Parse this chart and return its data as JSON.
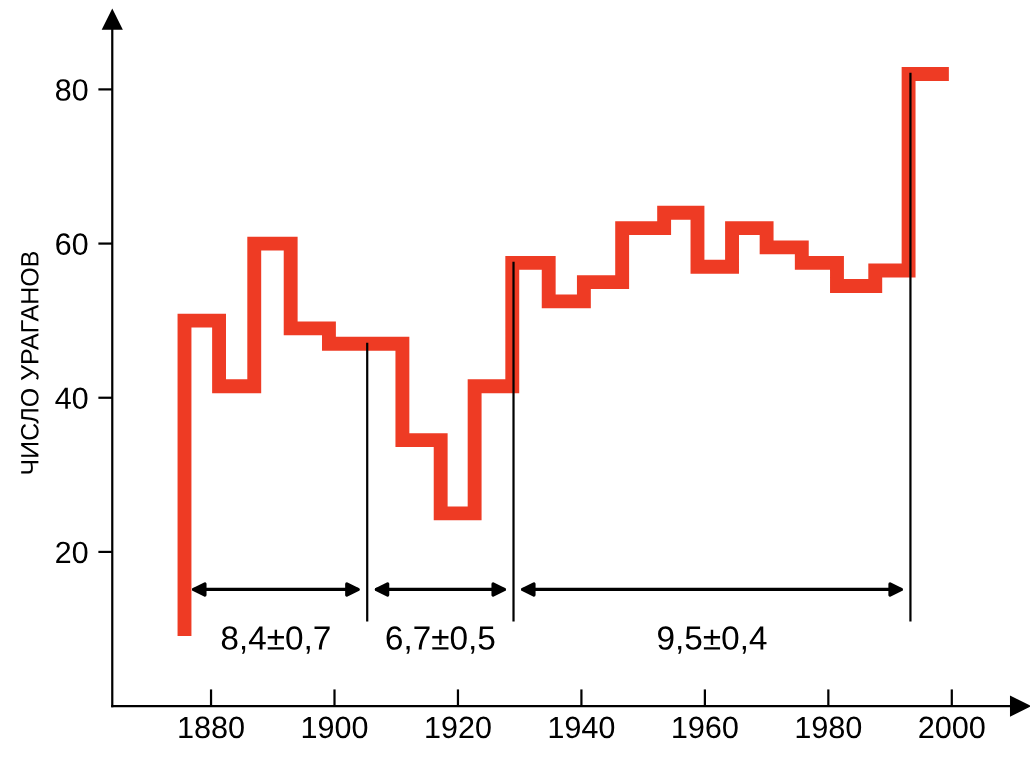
{
  "chart_data": {
    "type": "step",
    "ylabel": "ЧИСЛО УРАГАНОВ",
    "x": [
      1875.7,
      1875.7,
      1881.3,
      1887.0,
      1892.9,
      1899.1,
      1911.0,
      1917.2,
      1922.7,
      1928.8,
      1934.7,
      1940.4,
      1946.6,
      1953.4,
      1958.8,
      1964.4,
      1970.0,
      1975.7,
      1981.4,
      1987.6,
      1993.0,
      1998.4
    ],
    "series": [
      {
        "color": "#ee3b24",
        "values": [
          10,
          50,
          41.5,
          60,
          49,
          47,
          34.5,
          25,
          41.5,
          57.5,
          52.5,
          55,
          62,
          64,
          57,
          62,
          59.5,
          57.5,
          54.5,
          56.5,
          82,
          82
        ]
      }
    ],
    "xlim": [
      1864,
      2011
    ],
    "ylim": [
      0,
      89
    ],
    "xticks": [
      1880,
      1900,
      1920,
      1940,
      1960,
      1980,
      2000
    ],
    "yticks": [
      20,
      40,
      60,
      80
    ],
    "ref_lines": [
      {
        "axis": "x",
        "value": 1905.3,
        "color": "#000000"
      },
      {
        "axis": "x",
        "value": 1929.0,
        "color": "#000000"
      },
      {
        "axis": "x",
        "value": 1993.3,
        "color": "#000000"
      }
    ],
    "annotations": [
      "8,4±0,7",
      "6,7±0,5",
      "9,5±0,4"
    ],
    "grid": false,
    "legend": false
  }
}
